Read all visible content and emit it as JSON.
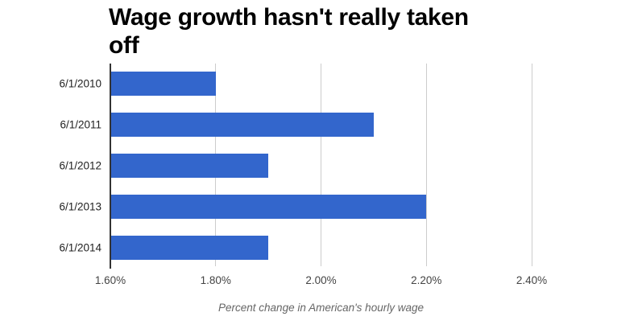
{
  "chart_data": {
    "type": "bar",
    "orientation": "horizontal",
    "title": "Wage growth hasn't really taken off",
    "categories": [
      "6/1/2010",
      "6/1/2011",
      "6/1/2012",
      "6/1/2013",
      "6/1/2014"
    ],
    "values": [
      1.8,
      2.1,
      1.9,
      2.2,
      1.9
    ],
    "xlabel": "Percent change in American's hourly wage",
    "ylabel": "",
    "xlim": [
      1.6,
      2.4
    ],
    "x_ticks": [
      {
        "value": 1.6,
        "label": "1.60%"
      },
      {
        "value": 1.8,
        "label": "1.80%"
      },
      {
        "value": 2.0,
        "label": "2.00%"
      },
      {
        "value": 2.2,
        "label": "2.20%"
      },
      {
        "value": 2.4,
        "label": "2.40%"
      }
    ],
    "grid": true,
    "legend": "none",
    "colors": {
      "bar": "#3366CC",
      "title": "#000000",
      "category_label": "#222222",
      "tick_label": "#444444",
      "axis_title": "#666666",
      "gridline": "#CCCCCC",
      "baseline": "#333333",
      "background": "#FFFFFF"
    }
  }
}
